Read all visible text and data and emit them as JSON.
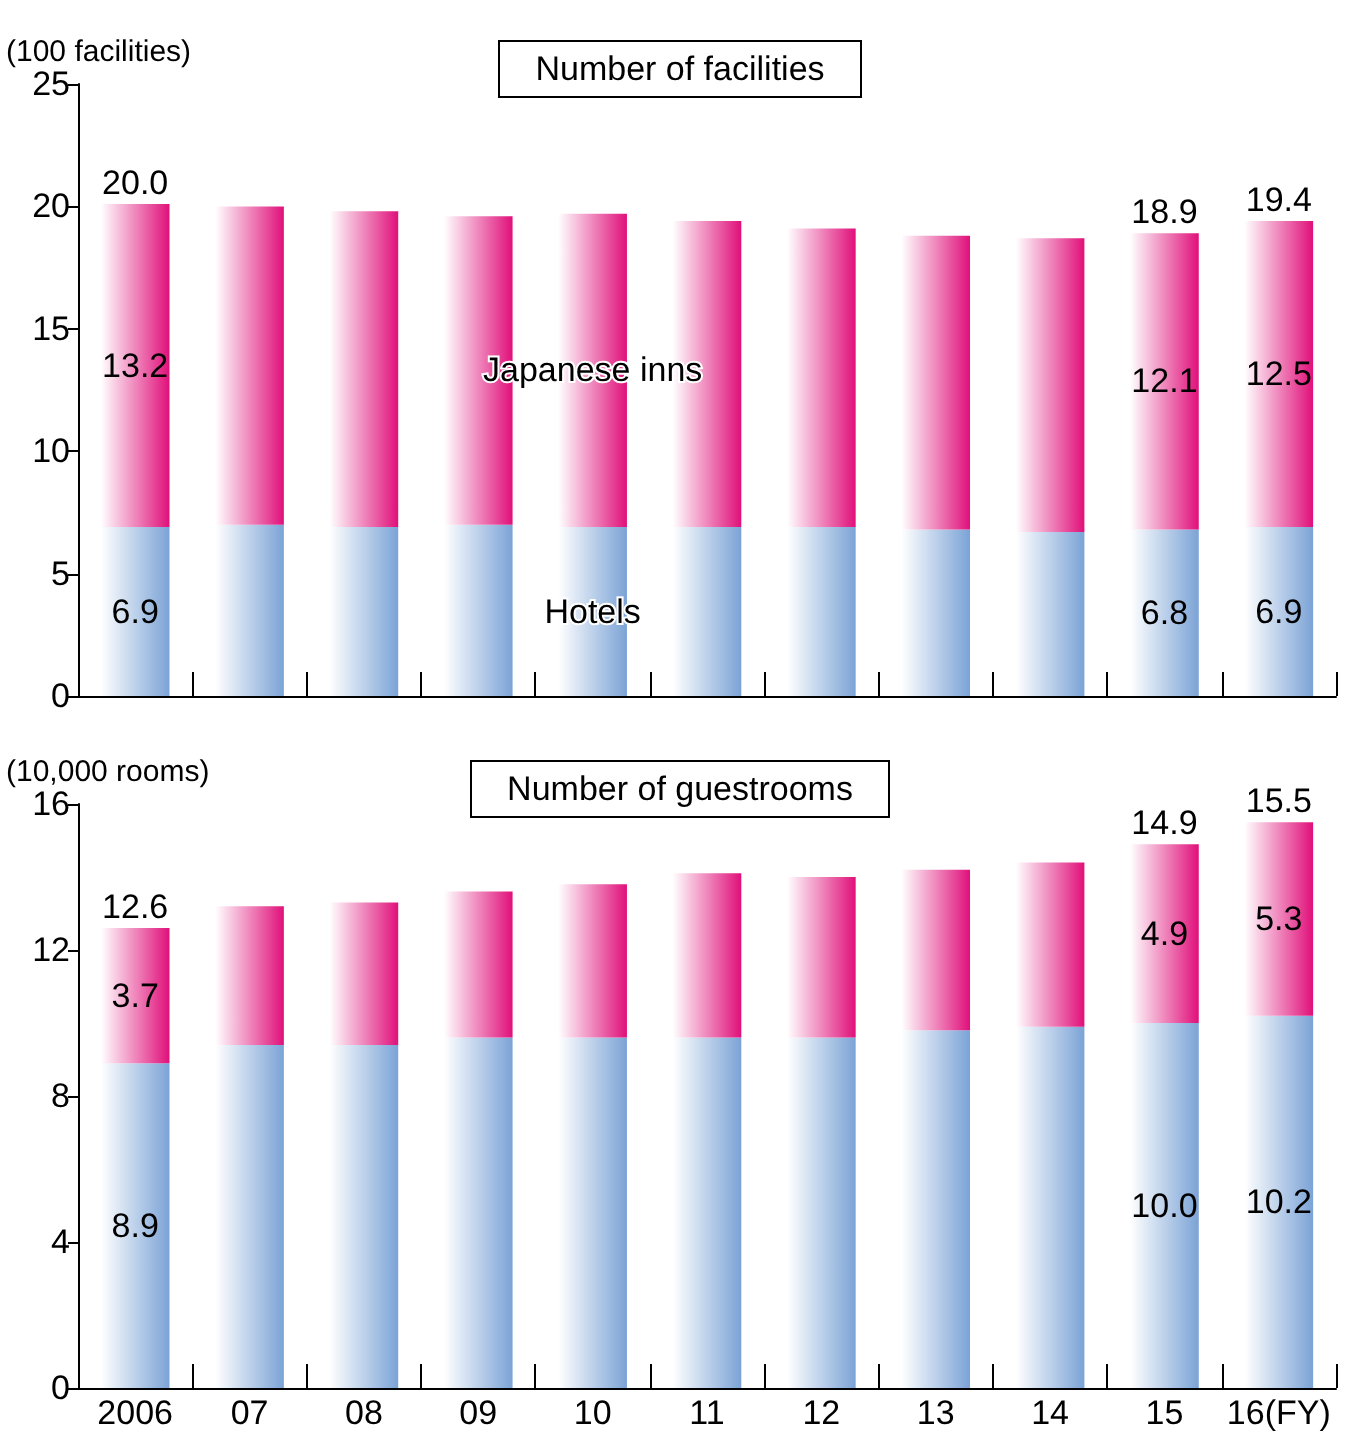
{
  "chart_data": [
    {
      "type": "bar",
      "title": "Number of facilities",
      "ylabel": "(100 facilities)",
      "stacked": true,
      "categories": [
        null,
        null,
        null,
        null,
        null,
        null,
        null,
        null,
        null,
        null,
        null
      ],
      "ylim": [
        0,
        25
      ],
      "yticks": [
        0,
        5,
        10,
        15,
        20,
        25
      ],
      "grid": false,
      "legend": false,
      "tick_labels": "y",
      "series": [
        {
          "name": "Hotels",
          "color": "#7ba3d6",
          "values": [
            6.9,
            7.0,
            6.9,
            7.0,
            6.9,
            6.9,
            6.9,
            6.8,
            6.7,
            6.8,
            6.9
          ],
          "value_labels": [
            "6.9",
            null,
            null,
            null,
            null,
            null,
            null,
            null,
            null,
            "6.8",
            "6.9"
          ]
        },
        {
          "name": "Japanese inns",
          "color": "#e0107a",
          "values": [
            13.2,
            13.0,
            12.9,
            12.6,
            12.8,
            12.5,
            12.2,
            12.0,
            12.0,
            12.1,
            12.5
          ],
          "value_labels": [
            "13.2",
            null,
            null,
            null,
            null,
            null,
            null,
            null,
            null,
            "12.1",
            "12.5"
          ]
        }
      ],
      "totals": [
        "20.0",
        null,
        null,
        null,
        null,
        null,
        null,
        null,
        null,
        "18.9",
        "19.4"
      ]
    },
    {
      "type": "bar",
      "title": "Number of guestrooms",
      "ylabel": "(10,000 rooms)",
      "stacked": true,
      "categories": [
        "2006",
        "07",
        "08",
        "09",
        "10",
        "11",
        "12",
        "13",
        "14",
        "15",
        "16(FY)"
      ],
      "ylim": [
        0,
        16
      ],
      "yticks": [
        0,
        4,
        8,
        12,
        16
      ],
      "grid": false,
      "legend": false,
      "series": [
        {
          "color": "#7ba3d6",
          "values": [
            8.9,
            9.4,
            9.4,
            9.6,
            9.6,
            9.6,
            9.6,
            9.8,
            9.9,
            10.0,
            10.2
          ],
          "value_labels": [
            "8.9",
            null,
            null,
            null,
            null,
            null,
            null,
            null,
            null,
            "10.0",
            "10.2"
          ]
        },
        {
          "color": "#e0107a",
          "values": [
            3.7,
            3.8,
            3.9,
            4.0,
            4.2,
            4.5,
            4.4,
            4.4,
            4.5,
            4.9,
            5.3
          ],
          "value_labels": [
            "3.7",
            null,
            null,
            null,
            null,
            null,
            null,
            null,
            null,
            "4.9",
            "5.3"
          ]
        }
      ],
      "totals": [
        "12.6",
        null,
        null,
        null,
        null,
        null,
        null,
        null,
        null,
        "14.9",
        "15.5"
      ]
    }
  ]
}
